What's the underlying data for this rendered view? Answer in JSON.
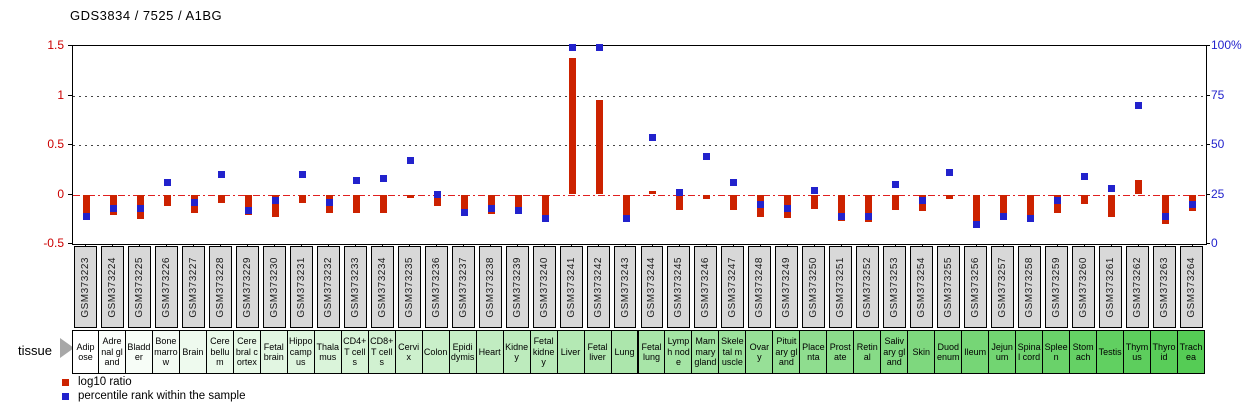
{
  "title": "GDS3834 / 7525 / A1BG",
  "tissue_row_label": "tissue",
  "colors": {
    "bar_red": "#cc2200",
    "marker_blue": "#2222cc",
    "left_axis_red": "#cc0000",
    "right_axis_blue": "#2222cc",
    "zero_line_red": "#e02020",
    "sample_box_gray": "#d8d8d8"
  },
  "left_axis": {
    "ticks": [
      {
        "label": "1.5",
        "value": 1.5
      },
      {
        "label": "1",
        "value": 1.0
      },
      {
        "label": "0.5",
        "value": 0.5
      },
      {
        "label": "0",
        "value": 0.0
      },
      {
        "label": "-0.5",
        "value": -0.5
      }
    ]
  },
  "right_axis": {
    "ticks": [
      {
        "label": "100%",
        "value": 100
      },
      {
        "label": "75",
        "value": 75
      },
      {
        "label": "50",
        "value": 50
      },
      {
        "label": "25",
        "value": 25
      },
      {
        "label": "0",
        "value": 0
      }
    ]
  },
  "legend": [
    {
      "swatch": "#cc2200",
      "label": "log10 ratio"
    },
    {
      "swatch": "#2222cc",
      "label": "percentile rank within the sample"
    }
  ],
  "chart_data": {
    "type": "bar",
    "title": "GDS3834 / 7525 / A1BG",
    "ylabel_left": "log10 ratio",
    "ylabel_right": "percentile rank within the sample",
    "ylim_left": [
      -0.5,
      1.5
    ],
    "ylim_right": [
      0,
      100
    ],
    "gridlines_left": [
      0.5,
      1.0
    ],
    "zero_line": 0,
    "grid": "dotted",
    "legend_position": "bottom-left",
    "series_names": [
      "log10 ratio",
      "percentile rank within the sample"
    ],
    "samples": [
      {
        "gsm": "GSM373223",
        "tissue": "Adipose",
        "tissue_color": "#ffffff",
        "log10_ratio": -0.26,
        "percentile_rank": 14
      },
      {
        "gsm": "GSM373224",
        "tissue": "Adrenal gland",
        "tissue_color": "#fbfefb",
        "log10_ratio": -0.21,
        "percentile_rank": 18
      },
      {
        "gsm": "GSM373225",
        "tissue": "Bladder",
        "tissue_color": "#f7fdf7",
        "log10_ratio": -0.25,
        "percentile_rank": 18
      },
      {
        "gsm": "GSM373226",
        "tissue": "Bone marrow",
        "tissue_color": "#f3fbf3",
        "log10_ratio": -0.12,
        "percentile_rank": 31
      },
      {
        "gsm": "GSM373227",
        "tissue": "Brain",
        "tissue_color": "#eefaee",
        "log10_ratio": -0.19,
        "percentile_rank": 21
      },
      {
        "gsm": "GSM373228",
        "tissue": "Cerebellum",
        "tissue_color": "#eaf9ea",
        "log10_ratio": -0.09,
        "percentile_rank": 35
      },
      {
        "gsm": "GSM373229",
        "tissue": "Cerebral cortex",
        "tissue_color": "#e6f8e6",
        "log10_ratio": -0.21,
        "percentile_rank": 17
      },
      {
        "gsm": "GSM373230",
        "tissue": "Fetal brain",
        "tissue_color": "#e2f6e2",
        "log10_ratio": -0.23,
        "percentile_rank": 22
      },
      {
        "gsm": "GSM373231",
        "tissue": "Hippocampus",
        "tissue_color": "#def5de",
        "log10_ratio": -0.09,
        "percentile_rank": 35
      },
      {
        "gsm": "GSM373232",
        "tissue": "Thalamus",
        "tissue_color": "#daf4da",
        "log10_ratio": -0.19,
        "percentile_rank": 21
      },
      {
        "gsm": "GSM373233",
        "tissue": "CD4+T cells",
        "tissue_color": "#d6f3d6",
        "log10_ratio": -0.19,
        "percentile_rank": 32
      },
      {
        "gsm": "GSM373234",
        "tissue": "CD8+T cells",
        "tissue_color": "#d1f1d1",
        "log10_ratio": -0.19,
        "percentile_rank": 33
      },
      {
        "gsm": "GSM373235",
        "tissue": "Cervix",
        "tissue_color": "#cdf0cd",
        "log10_ratio": -0.04,
        "percentile_rank": 42
      },
      {
        "gsm": "GSM373236",
        "tissue": "Colon",
        "tissue_color": "#c9efc9",
        "log10_ratio": -0.12,
        "percentile_rank": 25
      },
      {
        "gsm": "GSM373237",
        "tissue": "Epididymis",
        "tissue_color": "#c5eec5",
        "log10_ratio": -0.21,
        "percentile_rank": 16
      },
      {
        "gsm": "GSM373238",
        "tissue": "Heart",
        "tissue_color": "#c1ecc1",
        "log10_ratio": -0.2,
        "percentile_rank": 18
      },
      {
        "gsm": "GSM373239",
        "tissue": "Kidney",
        "tissue_color": "#bdebbd",
        "log10_ratio": -0.2,
        "percentile_rank": 17
      },
      {
        "gsm": "GSM373240",
        "tissue": "Fetal kidney",
        "tissue_color": "#b9eab9",
        "log10_ratio": -0.27,
        "percentile_rank": 13
      },
      {
        "gsm": "GSM373241",
        "tissue": "Liver",
        "tissue_color": "#b4e9b4",
        "log10_ratio": 1.38,
        "percentile_rank": 99
      },
      {
        "gsm": "GSM373242",
        "tissue": "Fetal liver",
        "tissue_color": "#b0e7b0",
        "log10_ratio": 0.95,
        "percentile_rank": 99
      },
      {
        "gsm": "GSM373243",
        "tissue": "Lung",
        "tissue_color": "#ace6ac",
        "log10_ratio": -0.26,
        "percentile_rank": 13
      },
      {
        "gsm": "GSM373244",
        "tissue": "Fetal lung",
        "tissue_color": "#a8e5a8",
        "log10_ratio": 0.04,
        "percentile_rank": 54
      },
      {
        "gsm": "GSM373245",
        "tissue": "Lymph node",
        "tissue_color": "#a4e4a4",
        "log10_ratio": -0.16,
        "percentile_rank": 26
      },
      {
        "gsm": "GSM373246",
        "tissue": "Mammary gland",
        "tissue_color": "#a0e2a0",
        "log10_ratio": -0.05,
        "percentile_rank": 44
      },
      {
        "gsm": "GSM373247",
        "tissue": "Skeletal muscle",
        "tissue_color": "#9be19b",
        "log10_ratio": -0.16,
        "percentile_rank": 31
      },
      {
        "gsm": "GSM373248",
        "tissue": "Ovary",
        "tissue_color": "#97e097",
        "log10_ratio": -0.23,
        "percentile_rank": 20
      },
      {
        "gsm": "GSM373249",
        "tissue": "Pituitary gland",
        "tissue_color": "#93df93",
        "log10_ratio": -0.24,
        "percentile_rank": 18
      },
      {
        "gsm": "GSM373250",
        "tissue": "Placenta",
        "tissue_color": "#8fdd8f",
        "log10_ratio": -0.15,
        "percentile_rank": 27
      },
      {
        "gsm": "GSM373251",
        "tissue": "Prostate",
        "tissue_color": "#8bdc8b",
        "log10_ratio": -0.27,
        "percentile_rank": 14
      },
      {
        "gsm": "GSM373252",
        "tissue": "Retinal",
        "tissue_color": "#87db87",
        "log10_ratio": -0.28,
        "percentile_rank": 14
      },
      {
        "gsm": "GSM373253",
        "tissue": "Salivary gland",
        "tissue_color": "#83da83",
        "log10_ratio": -0.16,
        "percentile_rank": 30
      },
      {
        "gsm": "GSM373254",
        "tissue": "Skin",
        "tissue_color": "#7ed87e",
        "log10_ratio": -0.17,
        "percentile_rank": 22
      },
      {
        "gsm": "GSM373255",
        "tissue": "Duodenum",
        "tissue_color": "#7ad77a",
        "log10_ratio": -0.05,
        "percentile_rank": 36
      },
      {
        "gsm": "GSM373256",
        "tissue": "Ileum",
        "tissue_color": "#76d676",
        "log10_ratio": -0.34,
        "percentile_rank": 10
      },
      {
        "gsm": "GSM373257",
        "tissue": "Jejunum",
        "tissue_color": "#72d572",
        "log10_ratio": -0.24,
        "percentile_rank": 14
      },
      {
        "gsm": "GSM373258",
        "tissue": "Spinal cord",
        "tissue_color": "#6ed36e",
        "log10_ratio": -0.28,
        "percentile_rank": 13
      },
      {
        "gsm": "GSM373259",
        "tissue": "Spleen",
        "tissue_color": "#6ad26a",
        "log10_ratio": -0.19,
        "percentile_rank": 22
      },
      {
        "gsm": "GSM373260",
        "tissue": "Stomach",
        "tissue_color": "#65d165",
        "log10_ratio": -0.1,
        "percentile_rank": 34
      },
      {
        "gsm": "GSM373261",
        "tissue": "Testis",
        "tissue_color": "#61d061",
        "log10_ratio": -0.23,
        "percentile_rank": 28
      },
      {
        "gsm": "GSM373262",
        "tissue": "Thymus",
        "tissue_color": "#5dce5d",
        "log10_ratio": 0.15,
        "percentile_rank": 70
      },
      {
        "gsm": "GSM373263",
        "tissue": "Thyroid",
        "tissue_color": "#59cd59",
        "log10_ratio": -0.3,
        "percentile_rank": 14
      },
      {
        "gsm": "GSM373264",
        "tissue": "Trachea",
        "tissue_color": "#55cc55",
        "log10_ratio": -0.17,
        "percentile_rank": 20
      }
    ]
  }
}
